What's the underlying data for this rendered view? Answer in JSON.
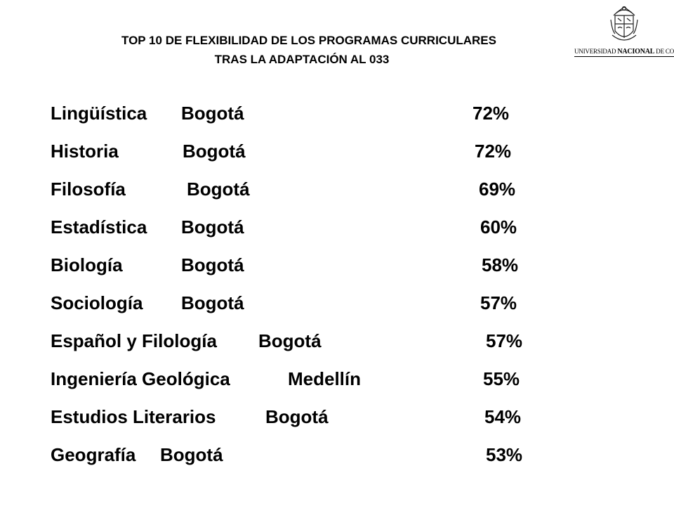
{
  "header": {
    "title_line1": "TOP 10  DE FLEXIBILIDAD DE LOS PROGRAMAS CURRICULARES",
    "title_line2": "TRAS LA ADAPTACIÓN  AL 033"
  },
  "logo": {
    "icon": "university-crest-icon",
    "text_prefix": "UNIVERSIDAD ",
    "text_strong": "NACIONAL",
    "text_suffix": " DE COLOMBIA"
  },
  "programs": [
    {
      "name": "Lingüística",
      "campus": "Bogotá",
      "percent": "72%"
    },
    {
      "name": "Historia",
      "campus": "Bogotá",
      "percent": "72%"
    },
    {
      "name": "Filosofía",
      "campus": "Bogotá",
      "percent": "69%"
    },
    {
      "name": "Estadística",
      "campus": "Bogotá",
      "percent": "60%"
    },
    {
      "name": "Biología",
      "campus": "Bogotá",
      "percent": "58%"
    },
    {
      "name": "Sociología",
      "campus": "Bogotá",
      "percent": "57%"
    },
    {
      "name": "Español y Filología",
      "campus": "Bogotá",
      "percent": "57%"
    },
    {
      "name": "Ingeniería Geológica",
      "campus": "Medellín",
      "percent": "55%"
    },
    {
      "name": "Estudios Literarios",
      "campus": "Bogotá",
      "percent": "54%"
    },
    {
      "name": "Geografía",
      "campus": "Bogotá",
      "percent": "53%"
    }
  ]
}
